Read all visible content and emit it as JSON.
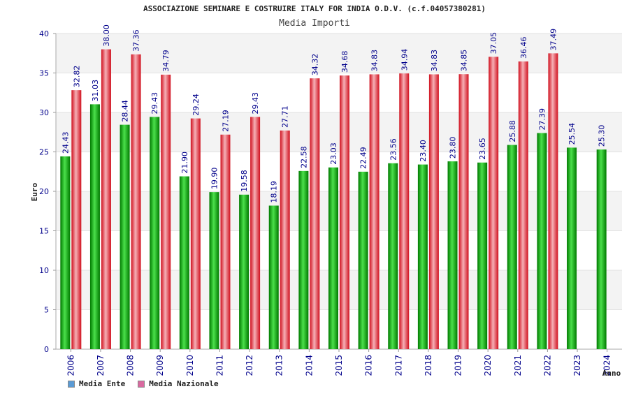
{
  "chart_data": {
    "type": "bar",
    "title": "ASSOCIAZIONE SEMINARE E COSTRUIRE ITALY FOR INDIA O.D.V. (c.f.04057380281)",
    "subtitle": "Media Importi",
    "xlabel": "Anno",
    "ylabel": "Euro",
    "ylim": [
      0,
      40
    ],
    "yticks": [
      0,
      5,
      10,
      15,
      20,
      25,
      30,
      35,
      40
    ],
    "categories": [
      "2006",
      "2007",
      "2008",
      "2009",
      "2010",
      "2011",
      "2012",
      "2013",
      "2014",
      "2015",
      "2016",
      "2017",
      "2018",
      "2019",
      "2020",
      "2021",
      "2022",
      "2023",
      "2024"
    ],
    "series": [
      {
        "name": "Media Ente",
        "color": "#00b000",
        "values": [
          24.43,
          31.03,
          28.44,
          29.43,
          21.9,
          19.9,
          19.58,
          18.19,
          22.58,
          23.03,
          22.49,
          23.56,
          23.4,
          23.8,
          23.65,
          25.88,
          27.39,
          25.54,
          25.3
        ],
        "labels": [
          "24.43",
          "31.03",
          "28.44",
          "29.43",
          "21.90",
          "19.90",
          "19.58",
          "18.19",
          "22.58",
          "23.03",
          "22.49",
          "23.56",
          "23.40",
          "23.80",
          "23.65",
          "25.88",
          "27.39",
          "25.54",
          "25.30"
        ]
      },
      {
        "name": "Media Nazionale",
        "color": "#e02030",
        "values": [
          32.82,
          38.0,
          37.36,
          34.79,
          29.24,
          27.19,
          29.43,
          27.71,
          34.32,
          34.68,
          34.83,
          34.94,
          34.83,
          34.85,
          37.05,
          36.46,
          37.49,
          null,
          null
        ],
        "labels": [
          "32.82",
          "38.00",
          "37.36",
          "34.79",
          "29.24",
          "27.19",
          "29.43",
          "27.71",
          "34.32",
          "34.68",
          "34.83",
          "34.94",
          "34.83",
          "34.85",
          "37.05",
          "36.46",
          "37.49",
          "",
          ""
        ]
      }
    ],
    "legend_position": "bottom-left",
    "legend_colors": [
      "#5b9bd5",
      "#d96aa0"
    ]
  }
}
